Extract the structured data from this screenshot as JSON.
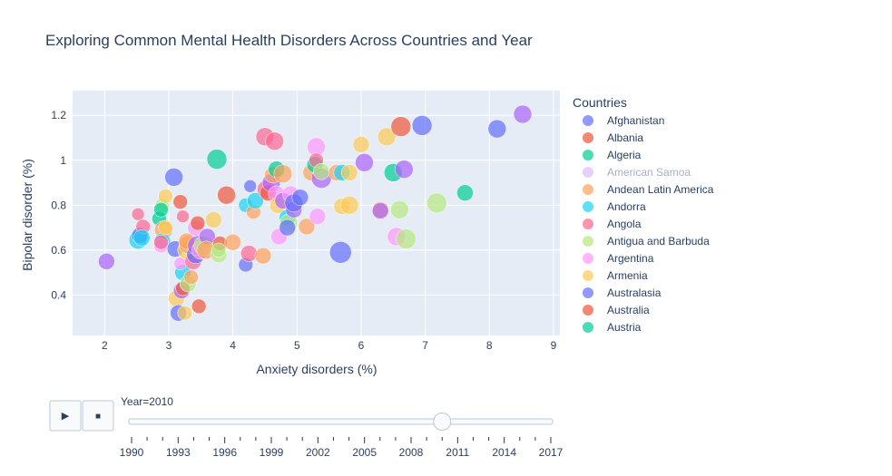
{
  "chart_data": {
    "type": "scatter",
    "title": "Exploring Common Mental Health Disorders Across Countries and Year",
    "xlabel": "Anxiety disorders (%)",
    "ylabel": "Bipolar disorder (%)",
    "xlim": [
      1.5,
      9.1
    ],
    "ylim": [
      0.22,
      1.31
    ],
    "xticks": [
      2,
      3,
      4,
      5,
      6,
      7,
      8,
      9
    ],
    "yticks": [
      0.4,
      0.6,
      0.8,
      1,
      1.2
    ],
    "ytick_labels": [
      "0.4",
      "0.6",
      "0.8",
      "1",
      "1.2"
    ],
    "grid": true,
    "legend_position": "right",
    "legend_title": "Countries",
    "series": [
      {
        "name": "Afghanistan",
        "color": "#636efa",
        "dim": false
      },
      {
        "name": "Albania",
        "color": "#EF553B",
        "dim": false
      },
      {
        "name": "Algeria",
        "color": "#00cc96",
        "dim": false
      },
      {
        "name": "American Samoa",
        "color": "#ab63fa",
        "dim": true
      },
      {
        "name": "Andean Latin America",
        "color": "#FFA15A",
        "dim": false
      },
      {
        "name": "Andorra",
        "color": "#19d3f3",
        "dim": false
      },
      {
        "name": "Angola",
        "color": "#FF6692",
        "dim": false
      },
      {
        "name": "Antigua and Barbuda",
        "color": "#B6E880",
        "dim": false
      },
      {
        "name": "Argentina",
        "color": "#FF97FF",
        "dim": false
      },
      {
        "name": "Armenia",
        "color": "#FECB52",
        "dim": false
      },
      {
        "name": "Australasia",
        "color": "#636efa",
        "dim": false
      },
      {
        "name": "Australia",
        "color": "#EF553B",
        "dim": false
      },
      {
        "name": "Austria",
        "color": "#00cc96",
        "dim": false
      }
    ],
    "points": [
      {
        "x": 2.03,
        "y": 0.55,
        "s": 9,
        "c": "#ab63fa"
      },
      {
        "x": 2.52,
        "y": 0.645,
        "s": 10,
        "c": "#19d3f3"
      },
      {
        "x": 2.55,
        "y": 0.665,
        "s": 9,
        "c": "#636efa"
      },
      {
        "x": 2.52,
        "y": 0.76,
        "s": 7,
        "c": "#FF6692"
      },
      {
        "x": 2.6,
        "y": 0.705,
        "s": 8,
        "c": "#FF6692"
      },
      {
        "x": 2.58,
        "y": 0.655,
        "s": 9,
        "c": "#19d3f3"
      },
      {
        "x": 2.85,
        "y": 0.74,
        "s": 8,
        "c": "#00cc96"
      },
      {
        "x": 2.9,
        "y": 0.8,
        "s": 8,
        "c": "#B6E880"
      },
      {
        "x": 2.95,
        "y": 0.84,
        "s": 8,
        "c": "#FECB52"
      },
      {
        "x": 2.88,
        "y": 0.78,
        "s": 8,
        "c": "#00cc96"
      },
      {
        "x": 2.92,
        "y": 0.69,
        "s": 10,
        "c": "#FFA15A"
      },
      {
        "x": 2.9,
        "y": 0.64,
        "s": 9,
        "c": "#19d3f3"
      },
      {
        "x": 2.88,
        "y": 0.62,
        "s": 8,
        "c": "#FF97FF"
      },
      {
        "x": 2.88,
        "y": 0.635,
        "s": 8,
        "c": "#FF6692"
      },
      {
        "x": 2.95,
        "y": 0.7,
        "s": 8,
        "c": "#FECB52"
      },
      {
        "x": 3.08,
        "y": 0.925,
        "s": 10,
        "c": "#636efa"
      },
      {
        "x": 3.1,
        "y": 0.605,
        "s": 9,
        "c": "#636efa"
      },
      {
        "x": 3.18,
        "y": 0.815,
        "s": 8,
        "c": "#EF553B"
      },
      {
        "x": 3.12,
        "y": 0.385,
        "s": 9,
        "c": "#FECB52"
      },
      {
        "x": 3.15,
        "y": 0.32,
        "s": 9,
        "c": "#636efa"
      },
      {
        "x": 3.2,
        "y": 0.42,
        "s": 9,
        "c": "#ab63fa"
      },
      {
        "x": 3.22,
        "y": 0.43,
        "s": 8,
        "c": "#EF553B"
      },
      {
        "x": 3.22,
        "y": 0.5,
        "s": 9,
        "c": "#19d3f3"
      },
      {
        "x": 3.25,
        "y": 0.32,
        "s": 8,
        "c": "#FECB52"
      },
      {
        "x": 3.22,
        "y": 0.75,
        "s": 7,
        "c": "#FF6692"
      },
      {
        "x": 3.18,
        "y": 0.54,
        "s": 7,
        "c": "#FF97FF"
      },
      {
        "x": 3.28,
        "y": 0.6,
        "s": 10,
        "c": "#FECB52"
      },
      {
        "x": 3.3,
        "y": 0.625,
        "s": 10,
        "c": "#FFA15A"
      },
      {
        "x": 3.28,
        "y": 0.64,
        "s": 9,
        "c": "#FFA15A"
      },
      {
        "x": 3.3,
        "y": 0.45,
        "s": 9,
        "c": "#B6E880"
      },
      {
        "x": 3.35,
        "y": 0.48,
        "s": 8,
        "c": "#FFA15A"
      },
      {
        "x": 3.38,
        "y": 0.55,
        "s": 9,
        "c": "#FF6692"
      },
      {
        "x": 3.42,
        "y": 0.58,
        "s": 10,
        "c": "#636efa"
      },
      {
        "x": 3.45,
        "y": 0.62,
        "s": 11,
        "c": "#ab63fa"
      },
      {
        "x": 3.42,
        "y": 0.7,
        "s": 9,
        "c": "#FF97FF"
      },
      {
        "x": 3.45,
        "y": 0.72,
        "s": 8,
        "c": "#EF553B"
      },
      {
        "x": 3.47,
        "y": 0.35,
        "s": 8,
        "c": "#EF553B"
      },
      {
        "x": 3.5,
        "y": 0.6,
        "s": 10,
        "c": "#FF97FF"
      },
      {
        "x": 3.55,
        "y": 0.62,
        "s": 11,
        "c": "#B6E880"
      },
      {
        "x": 3.6,
        "y": 0.66,
        "s": 9,
        "c": "#ab63fa"
      },
      {
        "x": 3.58,
        "y": 0.6,
        "s": 10,
        "c": "#FFA15A"
      },
      {
        "x": 3.7,
        "y": 0.735,
        "s": 9,
        "c": "#FECB52"
      },
      {
        "x": 3.75,
        "y": 1.005,
        "s": 11,
        "c": "#00cc96"
      },
      {
        "x": 3.78,
        "y": 0.58,
        "s": 9,
        "c": "#B6E880"
      },
      {
        "x": 3.8,
        "y": 0.63,
        "s": 8,
        "c": "#EF553B"
      },
      {
        "x": 3.78,
        "y": 0.6,
        "s": 8,
        "c": "#B6E880"
      },
      {
        "x": 3.9,
        "y": 0.845,
        "s": 10,
        "c": "#EF553B"
      },
      {
        "x": 4.0,
        "y": 0.635,
        "s": 9,
        "c": "#FFA15A"
      },
      {
        "x": 4.2,
        "y": 0.535,
        "s": 8,
        "c": "#636efa"
      },
      {
        "x": 4.2,
        "y": 0.8,
        "s": 8,
        "c": "#19d3f3"
      },
      {
        "x": 4.25,
        "y": 0.585,
        "s": 9,
        "c": "#FF6692"
      },
      {
        "x": 4.27,
        "y": 0.885,
        "s": 7,
        "c": "#636efa"
      },
      {
        "x": 4.32,
        "y": 0.77,
        "s": 8,
        "c": "#FFA15A"
      },
      {
        "x": 4.35,
        "y": 0.82,
        "s": 9,
        "c": "#19d3f3"
      },
      {
        "x": 4.47,
        "y": 0.575,
        "s": 9,
        "c": "#FFA15A"
      },
      {
        "x": 4.5,
        "y": 1.105,
        "s": 10,
        "c": "#FF6692"
      },
      {
        "x": 4.52,
        "y": 0.87,
        "s": 10,
        "c": "#FF6692"
      },
      {
        "x": 4.55,
        "y": 0.855,
        "s": 9,
        "c": "#EF553B"
      },
      {
        "x": 4.6,
        "y": 0.9,
        "s": 10,
        "c": "#ab63fa"
      },
      {
        "x": 4.62,
        "y": 0.935,
        "s": 9,
        "c": "#FFA15A"
      },
      {
        "x": 4.65,
        "y": 1.085,
        "s": 10,
        "c": "#FF6692"
      },
      {
        "x": 4.68,
        "y": 0.96,
        "s": 9,
        "c": "#00cc96"
      },
      {
        "x": 4.68,
        "y": 0.85,
        "s": 9,
        "c": "#FF97FF"
      },
      {
        "x": 4.7,
        "y": 0.8,
        "s": 9,
        "c": "#FECB52"
      },
      {
        "x": 4.72,
        "y": 0.66,
        "s": 9,
        "c": "#FF97FF"
      },
      {
        "x": 4.78,
        "y": 0.94,
        "s": 10,
        "c": "#FFA15A"
      },
      {
        "x": 4.78,
        "y": 0.82,
        "s": 9,
        "c": "#ab63fa"
      },
      {
        "x": 4.85,
        "y": 0.745,
        "s": 9,
        "c": "#19d3f3"
      },
      {
        "x": 4.87,
        "y": 0.72,
        "s": 10,
        "c": "#B6E880"
      },
      {
        "x": 4.85,
        "y": 0.7,
        "s": 9,
        "c": "#636efa"
      },
      {
        "x": 4.9,
        "y": 0.85,
        "s": 9,
        "c": "#FF97FF"
      },
      {
        "x": 4.95,
        "y": 0.78,
        "s": 9,
        "c": "#ab63fa"
      },
      {
        "x": 4.95,
        "y": 0.81,
        "s": 10,
        "c": "#636efa"
      },
      {
        "x": 5.05,
        "y": 0.835,
        "s": 9,
        "c": "#636efa"
      },
      {
        "x": 5.15,
        "y": 0.705,
        "s": 9,
        "c": "#FFA15A"
      },
      {
        "x": 5.22,
        "y": 0.945,
        "s": 9,
        "c": "#FFA15A"
      },
      {
        "x": 5.28,
        "y": 0.98,
        "s": 9,
        "c": "#00cc96"
      },
      {
        "x": 5.3,
        "y": 1.06,
        "s": 10,
        "c": "#FF97FF"
      },
      {
        "x": 5.3,
        "y": 1.0,
        "s": 8,
        "c": "#FF6692"
      },
      {
        "x": 5.32,
        "y": 0.75,
        "s": 9,
        "c": "#FF97FF"
      },
      {
        "x": 5.38,
        "y": 0.92,
        "s": 11,
        "c": "#ab63fa"
      },
      {
        "x": 5.38,
        "y": 0.95,
        "s": 9,
        "c": "#B6E880"
      },
      {
        "x": 5.62,
        "y": 0.945,
        "s": 9,
        "c": "#FFA15A"
      },
      {
        "x": 5.68,
        "y": 0.59,
        "s": 12,
        "c": "#636efa"
      },
      {
        "x": 5.7,
        "y": 0.795,
        "s": 9,
        "c": "#FECB52"
      },
      {
        "x": 5.7,
        "y": 0.945,
        "s": 9,
        "c": "#19d3f3"
      },
      {
        "x": 5.82,
        "y": 0.8,
        "s": 10,
        "c": "#FECB52"
      },
      {
        "x": 5.82,
        "y": 0.945,
        "s": 9,
        "c": "#FECB52"
      },
      {
        "x": 6.0,
        "y": 1.07,
        "s": 9,
        "c": "#FECB52"
      },
      {
        "x": 6.05,
        "y": 0.99,
        "s": 10,
        "c": "#ab63fa"
      },
      {
        "x": 6.3,
        "y": 0.78,
        "s": 9,
        "c": "#FFA15A"
      },
      {
        "x": 6.3,
        "y": 0.775,
        "s": 9,
        "c": "#ab63fa"
      },
      {
        "x": 6.4,
        "y": 1.105,
        "s": 10,
        "c": "#FECB52"
      },
      {
        "x": 6.5,
        "y": 0.945,
        "s": 10,
        "c": "#00cc96"
      },
      {
        "x": 6.55,
        "y": 0.66,
        "s": 10,
        "c": "#FF97FF"
      },
      {
        "x": 6.6,
        "y": 0.78,
        "s": 10,
        "c": "#B6E880"
      },
      {
        "x": 6.62,
        "y": 1.15,
        "s": 11,
        "c": "#EF553B"
      },
      {
        "x": 6.67,
        "y": 0.96,
        "s": 10,
        "c": "#ab63fa"
      },
      {
        "x": 6.7,
        "y": 0.65,
        "s": 11,
        "c": "#B6E880"
      },
      {
        "x": 6.95,
        "y": 1.155,
        "s": 11,
        "c": "#636efa"
      },
      {
        "x": 7.18,
        "y": 0.81,
        "s": 11,
        "c": "#B6E880"
      },
      {
        "x": 7.62,
        "y": 0.855,
        "s": 9,
        "c": "#00cc96"
      },
      {
        "x": 8.12,
        "y": 1.14,
        "s": 10,
        "c": "#636efa"
      },
      {
        "x": 8.52,
        "y": 1.205,
        "s": 10,
        "c": "#ab63fa"
      }
    ]
  },
  "slider": {
    "current_label": "Year=2010",
    "value": 2010,
    "min": 1990,
    "max": 2017,
    "tick_labels": [
      "1990",
      "1993",
      "1996",
      "1999",
      "2002",
      "2005",
      "2008",
      "2011",
      "2014",
      "2017"
    ]
  },
  "controls": {
    "play_symbol": "▶",
    "stop_symbol": "■"
  }
}
